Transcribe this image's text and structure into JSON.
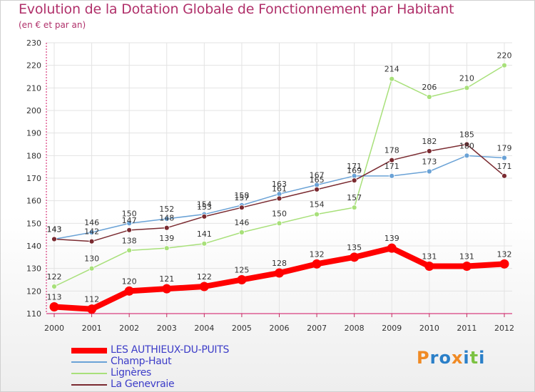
{
  "chart_data": {
    "type": "line",
    "title": "Evolution de la Dotation Globale de Fonctionnement par Habitant",
    "subtitle": "(en € et par an)",
    "xlabel": "",
    "ylabel": "",
    "x": [
      "2000",
      "2001",
      "2002",
      "2003",
      "2004",
      "2005",
      "2006",
      "2007",
      "2008",
      "2009",
      "2010",
      "2011",
      "2012"
    ],
    "ylim": [
      110,
      230
    ],
    "yticks": [
      110,
      120,
      130,
      140,
      150,
      160,
      170,
      180,
      190,
      200,
      210,
      220,
      230
    ],
    "grid": true,
    "legend_position": "bottom-left",
    "series": [
      {
        "name": "LES AUTHIEUX-DU-PUITS",
        "color": "#ff0000",
        "values": [
          113,
          112,
          120,
          121,
          122,
          125,
          128,
          132,
          135,
          139,
          131,
          131,
          132
        ]
      },
      {
        "name": "Champ-Haut",
        "color": "#6aa2d6",
        "values": [
          143,
          146,
          150,
          152,
          154,
          158,
          163,
          167,
          171,
          171,
          173,
          180,
          179
        ]
      },
      {
        "name": "Lignères",
        "color": "#a8e07a",
        "values": [
          122,
          130,
          138,
          139,
          141,
          146,
          150,
          154,
          157,
          214,
          206,
          210,
          220
        ]
      },
      {
        "name": "La Genevraie",
        "color": "#7a2a30",
        "values": [
          143,
          142,
          147,
          148,
          153,
          157,
          161,
          165,
          169,
          178,
          182,
          185,
          171
        ]
      }
    ]
  },
  "logo": {
    "letters": [
      "P",
      "r",
      "o",
      "x",
      "i",
      "t",
      "i"
    ],
    "colors": [
      "#f08a24",
      "#2a7fc8",
      "#2a7fc8",
      "#f08a24",
      "#2a7fc8",
      "#7cc242",
      "#2a7fc8"
    ]
  }
}
